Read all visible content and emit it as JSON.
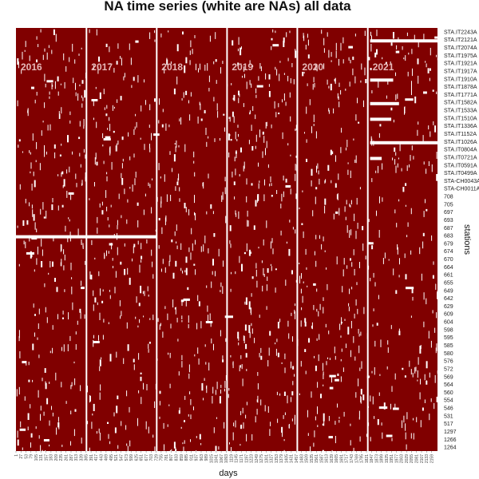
{
  "chart_data": {
    "type": "heatmap",
    "title": "NA time series (white are NAs) all data",
    "xlabel": "days",
    "ylabel": "stations",
    "colors": {
      "value": "#800000",
      "na": "#ffffff"
    },
    "x_range": [
      1,
      2190
    ],
    "years": [
      {
        "label": "2016",
        "start_day": 1,
        "end_day": 366
      },
      {
        "label": "2017",
        "start_day": 367,
        "end_day": 731
      },
      {
        "label": "2018",
        "start_day": 732,
        "end_day": 1096
      },
      {
        "label": "2019",
        "start_day": 1097,
        "end_day": 1461
      },
      {
        "label": "2020",
        "start_day": 1462,
        "end_day": 1827
      },
      {
        "label": "2021",
        "start_day": 1828,
        "end_day": 2190
      }
    ],
    "x_ticks": [
      1,
      27,
      53,
      79,
      105,
      131,
      157,
      183,
      209,
      235,
      261,
      287,
      313,
      339,
      365,
      391,
      417,
      443,
      469,
      495,
      521,
      547,
      573,
      599,
      625,
      651,
      677,
      703,
      729,
      755,
      781,
      807,
      833,
      859,
      885,
      911,
      937,
      963,
      989,
      1015,
      1041,
      1067,
      1093,
      1119,
      1145,
      1171,
      1197,
      1223,
      1249,
      1275,
      1301,
      1327,
      1353,
      1379,
      1405,
      1431,
      1457,
      1483,
      1509,
      1535,
      1561,
      1587,
      1613,
      1639,
      1665,
      1691,
      1717,
      1743,
      1769,
      1795,
      1821,
      1847,
      1873,
      1899,
      1925,
      1951,
      1977,
      2003,
      2029,
      2055,
      2081,
      2107,
      2133,
      2159
    ],
    "y_ticks": [
      "STA.IT2243A",
      "STA.IT2121A",
      "STA.IT2074A",
      "STA.IT1975A",
      "STA.IT1921A",
      "STA.IT1917A",
      "STA.IT1910A",
      "STA.IT1878A",
      "STA.IT1771A",
      "STA.IT1582A",
      "STA.IT1533A",
      "STA.IT1510A",
      "STA.IT1336A",
      "STA.IT1152A",
      "STA.IT1026A",
      "STA.IT0804A",
      "STA.IT0721A",
      "STA.IT0591A",
      "STA.IT0499A",
      "STA-CH0043A",
      "STA-CH0011A",
      "708",
      "705",
      "697",
      "693",
      "687",
      "683",
      "679",
      "674",
      "670",
      "664",
      "661",
      "655",
      "649",
      "642",
      "629",
      "609",
      "604",
      "598",
      "595",
      "585",
      "580",
      "576",
      "572",
      "569",
      "564",
      "560",
      "554",
      "546",
      "531",
      "517",
      "1297",
      "1266",
      "1264"
    ],
    "na_blocks": [
      {
        "note": "station gap",
        "station": "683",
        "day_start": 1,
        "day_end": 729
      },
      {
        "station": "STA.IT2121A",
        "day_start": 1840,
        "day_end": 2190
      },
      {
        "station": "STA.IT1026A",
        "day_start": 1840,
        "day_end": 2190
      },
      {
        "station": "STA.IT1910A",
        "day_start": 1840,
        "day_end": 1960
      },
      {
        "station": "STA.IT1582A",
        "day_start": 1840,
        "day_end": 1990
      },
      {
        "station": "STA.IT1510A",
        "day_start": 1840,
        "day_end": 1950
      },
      {
        "station": "STA.IT0721A",
        "day_start": 1840,
        "day_end": 1900
      }
    ]
  }
}
